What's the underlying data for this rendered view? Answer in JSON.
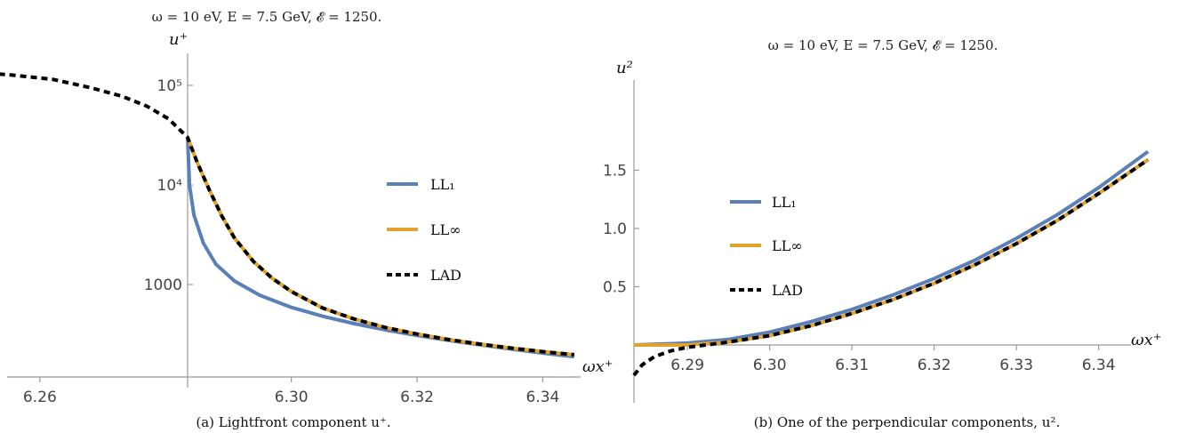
{
  "colors": {
    "ll1": "#5b7fb7",
    "llinf": "#e2a22e",
    "lad": "#000000",
    "axis": "#999999"
  },
  "chart_data": [
    {
      "type": "line",
      "title": "ω = 10 eV, E = 7.5 GeV, 𝓔 = 1250.",
      "xlabel": "ωx⁺",
      "ylabel": "u⁺",
      "yscale": "log",
      "xlim": [
        6.245,
        6.347
      ],
      "ylim": [
        170,
        200000
      ],
      "xticks": [
        6.26,
        6.3,
        6.32,
        6.34
      ],
      "xtick_labels": [
        "6.26",
        "6.30",
        "6.32",
        "6.34"
      ],
      "yticks": [
        1000,
        10000,
        100000
      ],
      "ytick_labels": [
        "1000",
        "10⁴",
        "10⁵"
      ],
      "legend": {
        "position": "middle-right",
        "entries": [
          "LL₁",
          "LL∞",
          "LAD"
        ]
      },
      "caption": "(a)  Lightfront component u⁺.",
      "series": [
        {
          "name": "LL₁",
          "style": "solid",
          "color": "#5b7fb7",
          "x": [
            6.2835,
            6.2838,
            6.2845,
            6.286,
            6.288,
            6.291,
            6.295,
            6.3,
            6.305,
            6.31,
            6.315,
            6.32,
            6.325,
            6.33,
            6.335,
            6.34,
            6.345
          ],
          "y": [
            30000,
            10000,
            5000,
            2600,
            1600,
            1080,
            780,
            590,
            480,
            405,
            350,
            308,
            275,
            248,
            225,
            205,
            188
          ]
        },
        {
          "name": "LL∞",
          "style": "solid",
          "color": "#e2a22e",
          "x": [
            6.2835,
            6.285,
            6.287,
            6.289,
            6.291,
            6.294,
            6.297,
            6.3,
            6.305,
            6.31,
            6.315,
            6.32,
            6.325,
            6.33,
            6.335,
            6.34,
            6.345
          ],
          "y": [
            30000,
            17000,
            8800,
            4800,
            2900,
            1700,
            1150,
            850,
            580,
            450,
            370,
            318,
            280,
            252,
            230,
            212,
            197
          ]
        },
        {
          "name": "LAD",
          "style": "dashed",
          "color": "#000000",
          "x": [
            6.245,
            6.255,
            6.262,
            6.268,
            6.273,
            6.277,
            6.2805,
            6.2835,
            6.285,
            6.287,
            6.289,
            6.291,
            6.294,
            6.297,
            6.3,
            6.305,
            6.31,
            6.315,
            6.32,
            6.325,
            6.33,
            6.335,
            6.34,
            6.345
          ],
          "y": [
            140000,
            128000,
            115000,
            95000,
            78000,
            62000,
            46000,
            30000,
            17000,
            8800,
            4800,
            2900,
            1700,
            1150,
            850,
            580,
            450,
            370,
            318,
            280,
            252,
            230,
            212,
            197
          ]
        }
      ]
    },
    {
      "type": "line",
      "title": "ω = 10 eV, E = 7.5 GeV, 𝓔 = 1250.",
      "xlabel": "ωx⁺",
      "ylabel": "u²",
      "xlim": [
        6.2835,
        6.347
      ],
      "ylim": [
        -0.3,
        1.75
      ],
      "xticks": [
        6.29,
        6.3,
        6.31,
        6.32,
        6.33,
        6.34
      ],
      "xtick_labels": [
        "6.29",
        "6.30",
        "6.31",
        "6.32",
        "6.33",
        "6.34"
      ],
      "yticks": [
        0.5,
        1.0,
        1.5
      ],
      "ytick_labels": [
        "0.5",
        "1.0",
        "1.5"
      ],
      "legend": {
        "position": "middle-left",
        "entries": [
          "LL₁",
          "LL∞",
          "LAD"
        ]
      },
      "caption": "(b) One of the perpendicular components, u².",
      "series": [
        {
          "name": "LL₁",
          "style": "solid",
          "color": "#5b7fb7",
          "x": [
            6.2835,
            6.29,
            6.295,
            6.3,
            6.305,
            6.31,
            6.315,
            6.32,
            6.325,
            6.33,
            6.335,
            6.34,
            6.346
          ],
          "y": [
            0,
            0.016,
            0.048,
            0.11,
            0.2,
            0.305,
            0.43,
            0.57,
            0.73,
            0.915,
            1.12,
            1.35,
            1.66
          ]
        },
        {
          "name": "LL∞",
          "style": "solid",
          "color": "#e2a22e",
          "x": [
            6.2835,
            6.29,
            6.295,
            6.3,
            6.305,
            6.31,
            6.315,
            6.32,
            6.325,
            6.33,
            6.335,
            6.34,
            6.346
          ],
          "y": [
            0,
            0.0,
            0.025,
            0.08,
            0.165,
            0.27,
            0.39,
            0.53,
            0.69,
            0.87,
            1.07,
            1.3,
            1.59
          ]
        },
        {
          "name": "LAD",
          "style": "dashed",
          "color": "#000000",
          "x": [
            6.2835,
            6.2845,
            6.286,
            6.288,
            6.29,
            6.295,
            6.3,
            6.305,
            6.31,
            6.315,
            6.32,
            6.325,
            6.33,
            6.335,
            6.34,
            6.346
          ],
          "y": [
            -0.26,
            -0.17,
            -0.1,
            -0.05,
            -0.02,
            0.025,
            0.08,
            0.165,
            0.27,
            0.39,
            0.53,
            0.69,
            0.87,
            1.07,
            1.3,
            1.59
          ]
        }
      ]
    }
  ]
}
